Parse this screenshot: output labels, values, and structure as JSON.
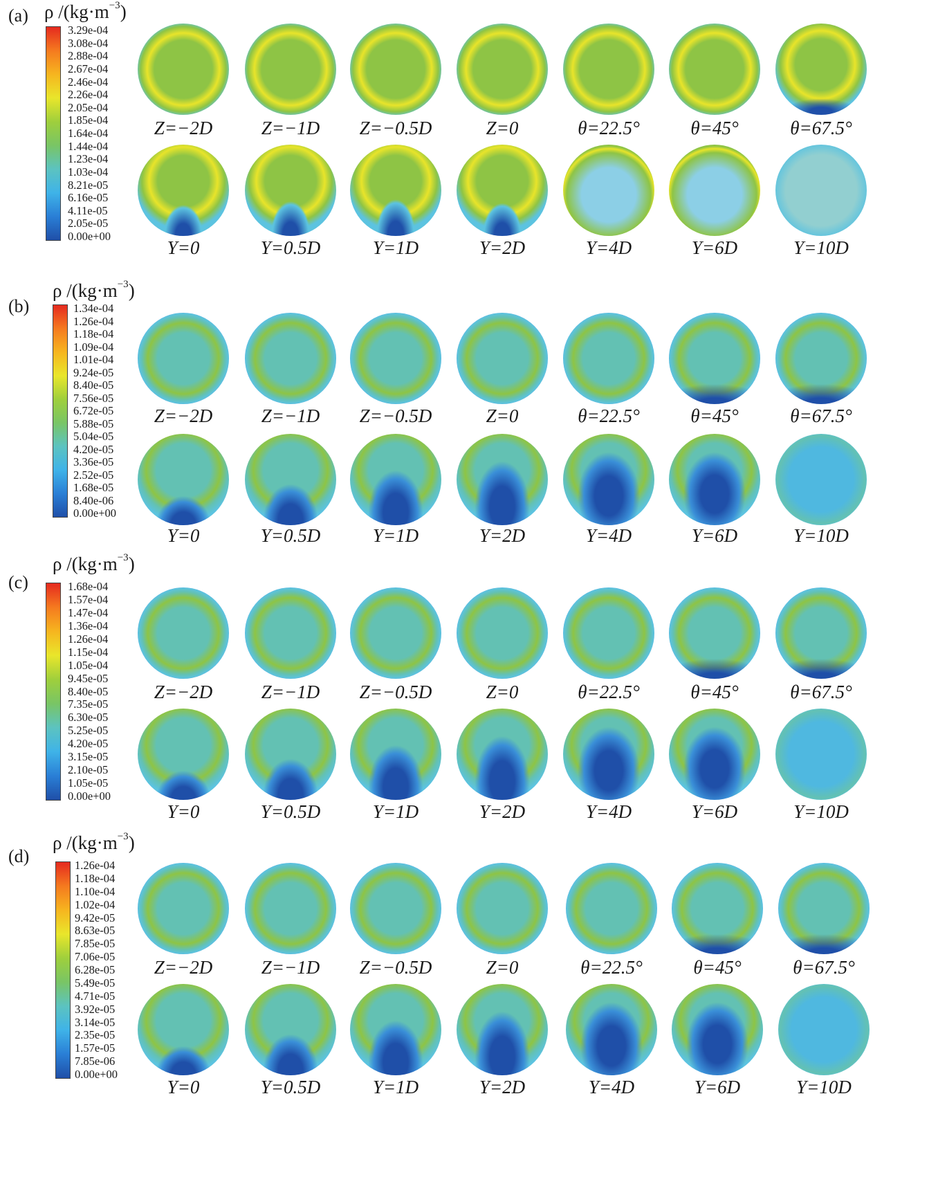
{
  "panels": [
    {
      "label": "(a)",
      "colorbar": {
        "title": "ρ /(kg·m",
        "title_sup": "−3",
        "title_close": ")",
        "ticks": [
          "3.29e-04",
          "3.08e-04",
          "2.88e-04",
          "2.67e-04",
          "2.46e-04",
          "2.26e-04",
          "2.05e-04",
          "1.85e-04",
          "1.64e-04",
          "1.44e-04",
          "1.23e-04",
          "1.03e-04",
          "8.21e-05",
          "6.16e-05",
          "4.11e-05",
          "2.05e-05",
          "0.00e+00"
        ]
      },
      "rows": [
        [
          "Z=−2D",
          "Z=−1D",
          "Z=−0.5D",
          "Z=0",
          "θ=22.5°",
          "θ=45°",
          "θ=67.5°"
        ],
        [
          "Y=0",
          "Y=0.5D",
          "Y=1D",
          "Y=2D",
          "Y=4D",
          "Y=6D",
          "Y=10D"
        ]
      ]
    },
    {
      "label": "(b)",
      "colorbar": {
        "title": "ρ /(kg·m",
        "title_sup": "−3",
        "title_close": ")",
        "ticks": [
          "1.34e-04",
          "1.26e-04",
          "1.18e-04",
          "1.09e-04",
          "1.01e-04",
          "9.24e-05",
          "8.40e-05",
          "7.56e-05",
          "6.72e-05",
          "5.88e-05",
          "5.04e-05",
          "4.20e-05",
          "3.36e-05",
          "2.52e-05",
          "1.68e-05",
          "8.40e-06",
          "0.00e+00"
        ]
      },
      "rows": [
        [
          "Z=−2D",
          "Z=−1D",
          "Z=−0.5D",
          "Z=0",
          "θ=22.5°",
          "θ=45°",
          "θ=67.5°"
        ],
        [
          "Y=0",
          "Y=0.5D",
          "Y=1D",
          "Y=2D",
          "Y=4D",
          "Y=6D",
          "Y=10D"
        ]
      ]
    },
    {
      "label": "(c)",
      "colorbar": {
        "title": "ρ /(kg·m",
        "title_sup": "−3",
        "title_close": ")",
        "ticks": [
          "1.68e-04",
          "1.57e-04",
          "1.47e-04",
          "1.36e-04",
          "1.26e-04",
          "1.15e-04",
          "1.05e-04",
          "9.45e-05",
          "8.40e-05",
          "7.35e-05",
          "6.30e-05",
          "5.25e-05",
          "4.20e-05",
          "3.15e-05",
          "2.10e-05",
          "1.05e-05",
          "0.00e+00"
        ]
      },
      "rows": [
        [
          "Z=−2D",
          "Z=−1D",
          "Z=−0.5D",
          "Z=0",
          "θ=22.5°",
          "θ=45°",
          "θ=67.5°"
        ],
        [
          "Y=0",
          "Y=0.5D",
          "Y=1D",
          "Y=2D",
          "Y=4D",
          "Y=6D",
          "Y=10D"
        ]
      ]
    },
    {
      "label": "(d)",
      "colorbar": {
        "title": "ρ /(kg·m",
        "title_sup": "−3",
        "title_close": ")",
        "ticks": [
          "1.26e-04",
          "1.18e-04",
          "1.10e-04",
          "1.02e-04",
          "9.42e-05",
          "8.63e-05",
          "7.85e-05",
          "7.06e-05",
          "6.28e-05",
          "5.49e-05",
          "4.71e-05",
          "3.92e-05",
          "3.14e-05",
          "2.35e-05",
          "1.57e-05",
          "7.85e-06",
          "0.00e+00"
        ]
      },
      "rows": [
        [
          "Z=−2D",
          "Z=−1D",
          "Z=−0.5D",
          "Z=0",
          "θ=22.5°",
          "θ=45°",
          "θ=67.5°"
        ],
        [
          "Y=0",
          "Y=0.5D",
          "Y=1D",
          "Y=2D",
          "Y=4D",
          "Y=6D",
          "Y=10D"
        ]
      ]
    }
  ],
  "colors": {
    "colormap": [
      "#1f4fa8",
      "#2a7fd6",
      "#3fb3e8",
      "#5cc3c0",
      "#79c565",
      "#9fcf3c",
      "#e9e62b",
      "#f6b51f",
      "#f57a1f",
      "#e52a1f"
    ],
    "deep_blue": "#1f4fa8",
    "light_blue": "#5cc3e0",
    "teal": "#63c1b3",
    "green": "#8ec445",
    "yellow": "#e8e42a"
  }
}
